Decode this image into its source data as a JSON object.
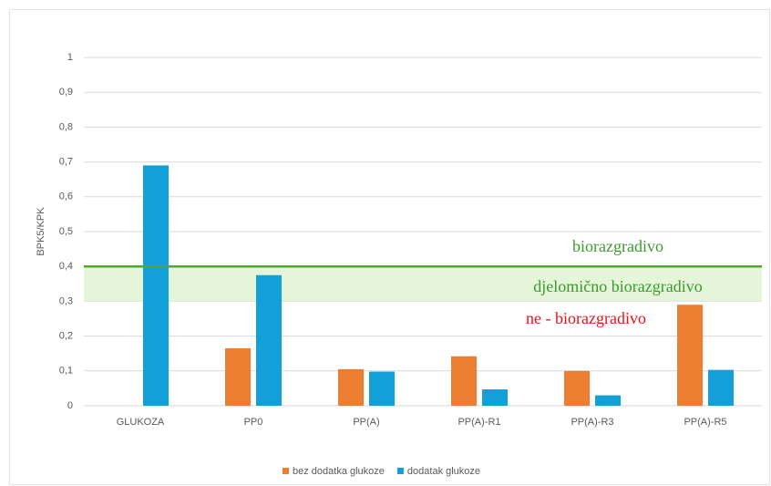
{
  "chart_data": {
    "type": "bar",
    "y_label": "BPK5/KPK",
    "categories": [
      "GLUKOZA",
      "PP0",
      "PP(A)",
      "PP(A)-R1",
      "PP(A)-R3",
      "PP(A)-R5"
    ],
    "series": [
      {
        "name": "bez dodatka glukoze",
        "color": "#ed7d31",
        "values": [
          null,
          0.165,
          0.105,
          0.142,
          0.1,
          0.29
        ]
      },
      {
        "name": "dodatak glukoze",
        "color": "#13a0d8",
        "values": [
          0.69,
          0.375,
          0.098,
          0.047,
          0.03,
          0.103
        ]
      }
    ],
    "ylim": [
      0,
      1
    ],
    "yticks": [
      0,
      {
        "value": 0.1,
        "label": "0,1"
      },
      {
        "value": 0.2,
        "label": "0,2"
      },
      {
        "value": 0.3,
        "label": "0,3"
      },
      {
        "value": 0.4,
        "label": "0,4"
      },
      {
        "value": 0.5,
        "label": "0,5"
      },
      {
        "value": 0.6,
        "label": "0,6"
      },
      {
        "value": 0.7,
        "label": "0,7"
      },
      {
        "value": 0.8,
        "label": "0,8"
      },
      {
        "value": 0.9,
        "label": "0,9"
      },
      1
    ],
    "grid": true,
    "threshold_line": {
      "value": 0.4,
      "color": "#4ea72e"
    },
    "band": {
      "range": [
        0.3,
        0.4
      ],
      "color": "#dff3d2"
    },
    "annotations": [
      {
        "text": "biorazgradivo",
        "color": "#3b9a2f"
      },
      {
        "text": "djelomično biorazgradivo",
        "color": "#3b9a2f"
      },
      {
        "text": "ne - biorazgradivo",
        "color": "#e8111a"
      }
    ],
    "legend": "bottom"
  }
}
